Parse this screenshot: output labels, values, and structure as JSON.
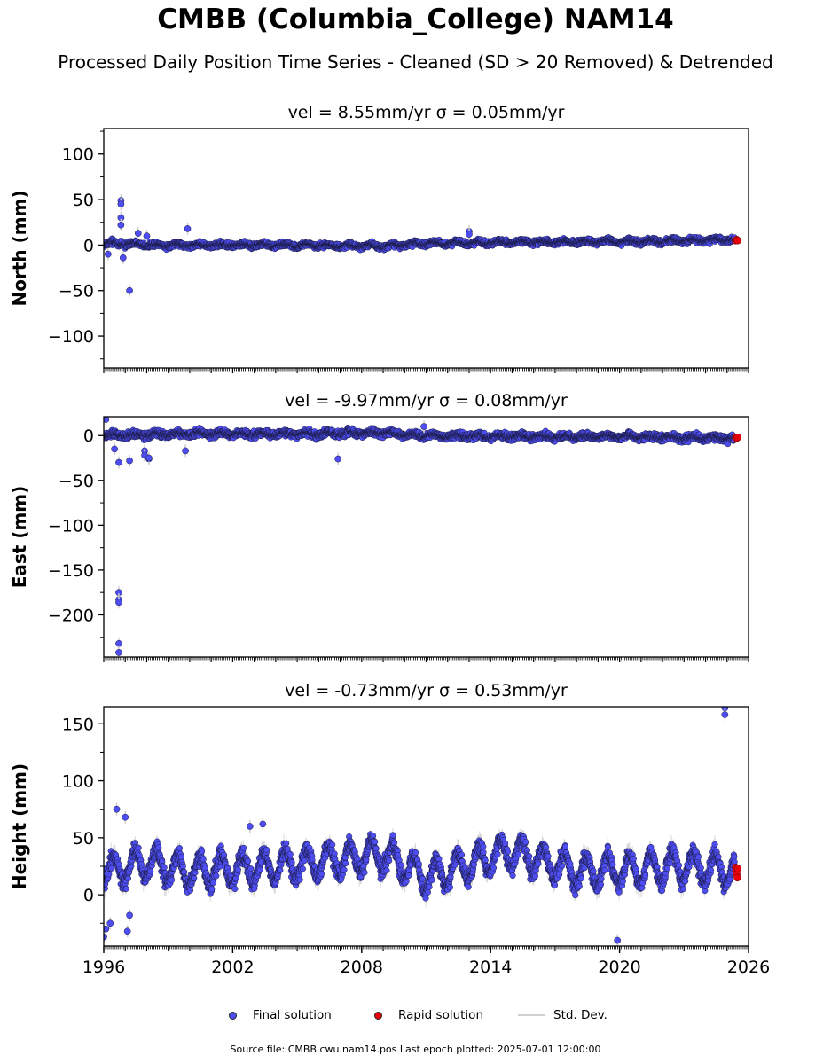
{
  "title": "CMBB (Columbia_College) NAM14",
  "subtitle": "Processed Daily Position Time Series - Cleaned (SD > 20 Removed) & Detrended",
  "legend": {
    "final_label": "Final solution",
    "rapid_label": "Rapid solution",
    "std_label": "Std. Dev."
  },
  "source_note": "Source file: CMBB.cwu.nam14.pos  Last epoch plotted: 2025-07-01 12:00:00",
  "colors": {
    "final": "#4d4df2",
    "rapid": "#e8000b",
    "stddev": "#cfcfcf",
    "outline": "#1a1a40"
  },
  "chart_data": [
    {
      "type": "scatter",
      "panel": "north",
      "title": "vel = 8.55mm/yr   σ = 0.05mm/yr",
      "ylabel": "North (mm)",
      "xlim": [
        1996,
        2026
      ],
      "ylim": [
        -135,
        128
      ],
      "yticks": [
        -100,
        -50,
        0,
        50,
        100
      ],
      "ytick_labels": [
        "−100",
        "−50",
        "0",
        "50",
        "100"
      ],
      "trend": [
        [
          1996,
          2
        ],
        [
          1999,
          0
        ],
        [
          2004,
          0
        ],
        [
          2009,
          -1
        ],
        [
          2011,
          2
        ],
        [
          2015,
          3
        ],
        [
          2020,
          4
        ],
        [
          2025.5,
          6
        ]
      ],
      "seasonal_amplitude": 1.5,
      "noise": 2,
      "outliers": [
        [
          1996.8,
          49
        ],
        [
          1996.8,
          45
        ],
        [
          1996.8,
          30
        ],
        [
          1996.8,
          22
        ],
        [
          1996.2,
          -10
        ],
        [
          1996.9,
          -14
        ],
        [
          1997.2,
          -50
        ],
        [
          1997.6,
          13
        ],
        [
          1998.0,
          10
        ],
        [
          1999.9,
          18
        ],
        [
          2013.0,
          15
        ],
        [
          2013.0,
          12
        ]
      ],
      "rapid": [
        [
          2025.4,
          5
        ],
        [
          2025.45,
          6
        ],
        [
          2025.5,
          5
        ]
      ]
    },
    {
      "type": "scatter",
      "panel": "east",
      "title": "vel = -9.97mm/yr   σ = 0.08mm/yr",
      "ylabel": "East (mm)",
      "xlim": [
        1996,
        2026
      ],
      "ylim": [
        -247,
        21
      ],
      "yticks": [
        -200,
        -150,
        -100,
        -50,
        0
      ],
      "ytick_labels": [
        "−200",
        "−150",
        "−100",
        "−50",
        "0"
      ],
      "trend": [
        [
          1996,
          0
        ],
        [
          2000,
          2
        ],
        [
          2006,
          2
        ],
        [
          2009,
          3
        ],
        [
          2010.5,
          0
        ],
        [
          2014,
          -1
        ],
        [
          2020,
          -1
        ],
        [
          2025.5,
          -3
        ]
      ],
      "seasonal_amplitude": 1.5,
      "noise": 2.5,
      "outliers": [
        [
          1996.1,
          18
        ],
        [
          1996.5,
          -15
        ],
        [
          1996.7,
          -30
        ],
        [
          1996.7,
          -175
        ],
        [
          1996.7,
          -183
        ],
        [
          1996.7,
          -186
        ],
        [
          1996.7,
          -232
        ],
        [
          1996.7,
          -242
        ],
        [
          1997.2,
          -28
        ],
        [
          1997.9,
          -17
        ],
        [
          1997.9,
          -22
        ],
        [
          1998.1,
          -26
        ],
        [
          1998.1,
          -25
        ],
        [
          1999.8,
          -17
        ],
        [
          2006.9,
          -26
        ],
        [
          2010.9,
          10
        ]
      ],
      "rapid": [
        [
          2025.4,
          -2
        ],
        [
          2025.45,
          -3
        ],
        [
          2025.5,
          -2
        ]
      ]
    },
    {
      "type": "scatter",
      "panel": "height",
      "title": "vel = -0.73mm/yr   σ = 0.53mm/yr",
      "ylabel": "Height (mm)",
      "xlim": [
        1996,
        2026
      ],
      "ylim": [
        -45,
        165
      ],
      "yticks": [
        0,
        50,
        100,
        150
      ],
      "ytick_labels": [
        "0",
        "50",
        "100",
        "150"
      ],
      "xticks": [
        1996,
        2002,
        2008,
        2014,
        2020,
        2026
      ],
      "xtick_labels": [
        "1996",
        "2002",
        "2008",
        "2014",
        "2020",
        "2026"
      ],
      "trend": [
        [
          1996,
          20
        ],
        [
          1998,
          28
        ],
        [
          2000,
          20
        ],
        [
          2004,
          25
        ],
        [
          2009,
          35
        ],
        [
          2011,
          15
        ],
        [
          2015,
          38
        ],
        [
          2018,
          20
        ],
        [
          2023,
          25
        ],
        [
          2025.5,
          20
        ]
      ],
      "seasonal_amplitude": 13,
      "noise": 5,
      "outliers": [
        [
          1996.6,
          75
        ],
        [
          1996.0,
          -37
        ],
        [
          1996.1,
          -30
        ],
        [
          1996.3,
          -25
        ],
        [
          1997.0,
          68
        ],
        [
          1997.1,
          -32
        ],
        [
          1997.2,
          -18
        ],
        [
          2002.8,
          60
        ],
        [
          2003.4,
          62
        ],
        [
          2019.9,
          -40
        ],
        [
          2024.9,
          164
        ],
        [
          2024.9,
          158
        ]
      ],
      "rapid": [
        [
          2025.4,
          24
        ],
        [
          2025.42,
          21
        ],
        [
          2025.45,
          18
        ],
        [
          2025.48,
          15
        ],
        [
          2025.5,
          23
        ]
      ]
    }
  ]
}
